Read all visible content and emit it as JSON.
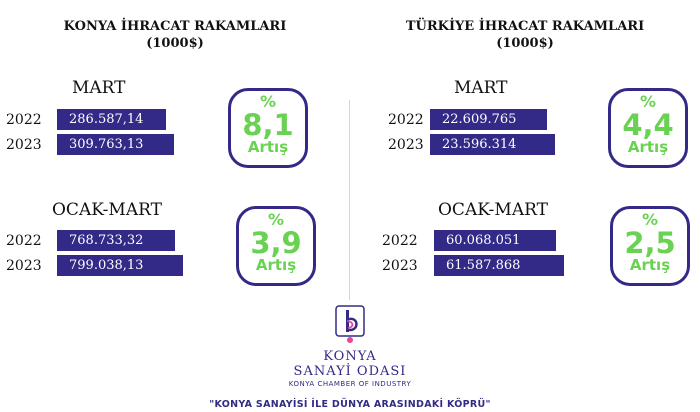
{
  "colors": {
    "bar": "#322a86",
    "accent_green": "#6ad252",
    "divider": "#d6d6d6"
  },
  "chart_data": [
    {
      "type": "table",
      "title": "KONYA İHRACAT RAKAMLARI",
      "unit": "(1000$)",
      "sections": [
        {
          "label": "MART",
          "rows": [
            {
              "year": "2022",
              "value": "286.587,14",
              "num": 286587.14
            },
            {
              "year": "2023",
              "value": "309.763,13",
              "num": 309763.13
            }
          ],
          "pct_symbol": "%",
          "change": "8,1",
          "change_label": "Artış"
        },
        {
          "label": "OCAK-MART",
          "rows": [
            {
              "year": "2022",
              "value": "768.733,32",
              "num": 768733.32
            },
            {
              "year": "2023",
              "value": "799.038,13",
              "num": 799038.13
            }
          ],
          "pct_symbol": "%",
          "change": "3,9",
          "change_label": "Artış"
        }
      ]
    },
    {
      "type": "table",
      "title": "TÜRKİYE İHRACAT RAKAMLARI",
      "unit": "(1000$)",
      "sections": [
        {
          "label": "MART",
          "rows": [
            {
              "year": "2022",
              "value": "22.609.765",
              "num": 22609765
            },
            {
              "year": "2023",
              "value": "23.596.314",
              "num": 23596314
            }
          ],
          "pct_symbol": "%",
          "change": "4,4",
          "change_label": "Artış"
        },
        {
          "label": "OCAK-MART",
          "rows": [
            {
              "year": "2022",
              "value": "60.068.051",
              "num": 60068051
            },
            {
              "year": "2023",
              "value": "61.587.868",
              "num": 61587868
            }
          ],
          "pct_symbol": "%",
          "change": "2,5",
          "change_label": "Artış"
        }
      ]
    }
  ],
  "brand": {
    "logo_icon": "konya-chamber-logo-icon",
    "name_line1": "KONYA",
    "name_line2": "SANAYİ ODASI",
    "name_en": "KONYA CHAMBER OF INDUSTRY"
  },
  "motto": "\"KONYA SANAYİSİ İLE DÜNYA ARASINDAKİ KÖPRÜ\""
}
